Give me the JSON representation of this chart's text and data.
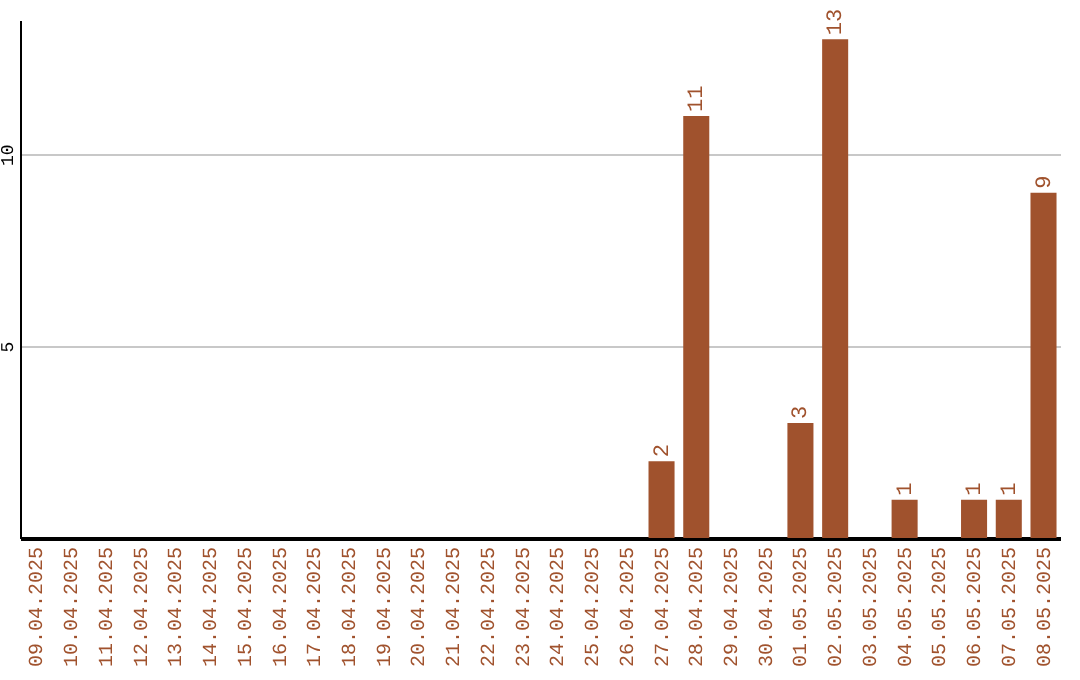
{
  "chart_data": {
    "type": "bar",
    "categories": [
      "09.04.2025",
      "10.04.2025",
      "11.04.2025",
      "12.04.2025",
      "13.04.2025",
      "14.04.2025",
      "15.04.2025",
      "16.04.2025",
      "17.04.2025",
      "18.04.2025",
      "19.04.2025",
      "20.04.2025",
      "21.04.2025",
      "22.04.2025",
      "23.04.2025",
      "24.04.2025",
      "25.04.2025",
      "26.04.2025",
      "27.04.2025",
      "28.04.2025",
      "29.04.2025",
      "30.04.2025",
      "01.05.2025",
      "02.05.2025",
      "03.05.2025",
      "04.05.2025",
      "05.05.2025",
      "06.05.2025",
      "07.05.2025",
      "08.05.2025"
    ],
    "values": [
      0,
      0,
      0,
      0,
      0,
      0,
      0,
      0,
      0,
      0,
      0,
      0,
      0,
      0,
      0,
      0,
      0,
      0,
      2,
      11,
      0,
      0,
      3,
      13,
      0,
      1,
      0,
      1,
      1,
      9
    ],
    "value_labels": [
      null,
      null,
      null,
      null,
      null,
      null,
      null,
      null,
      null,
      null,
      null,
      null,
      null,
      null,
      null,
      null,
      null,
      null,
      "2",
      "11",
      null,
      null,
      "3",
      "13",
      null,
      "1",
      null,
      "1",
      "1",
      "9"
    ],
    "color": "#a0522d",
    "ylim": [
      0,
      13.5
    ],
    "yticks": [
      5,
      10
    ],
    "grid": "y"
  }
}
